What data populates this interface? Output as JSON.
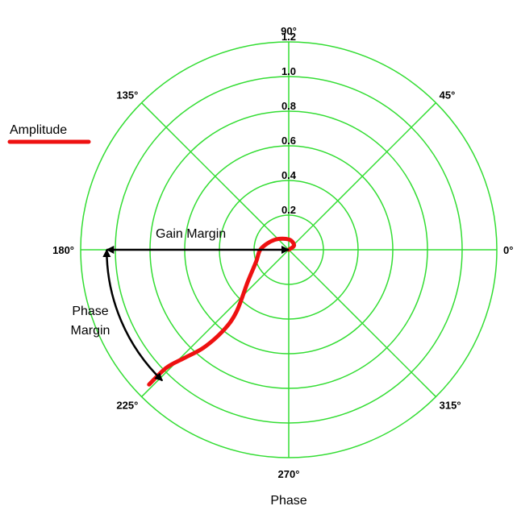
{
  "chart_data": {
    "type": "polar-line",
    "radial_ticks": [
      "0.2",
      "0.4",
      "0.6",
      "0.8",
      "1.0",
      "1.2"
    ],
    "radial_values": [
      0.2,
      0.4,
      0.6,
      0.8,
      1.0,
      1.2
    ],
    "angle_ticks": [
      "0°",
      "45°",
      "90°",
      "135°",
      "180°",
      "225°",
      "270°",
      "315°"
    ],
    "angle_values": [
      0,
      45,
      90,
      135,
      180,
      225,
      270,
      315
    ],
    "rmax": 1.2,
    "grid": true,
    "grid_color": "#33dd33",
    "axis_title": "Phase",
    "legend": {
      "label": "Amplitude",
      "color": "#ee1111",
      "position": "left"
    },
    "series": [
      {
        "name": "Amplitude",
        "color": "#ee1111",
        "points": [
          {
            "theta": 0,
            "r": 0.0
          },
          {
            "theta": 40,
            "r": 0.04
          },
          {
            "theta": 90,
            "r": 0.06
          },
          {
            "theta": 145,
            "r": 0.1
          },
          {
            "theta": 178,
            "r": 0.16
          },
          {
            "theta": 200,
            "r": 0.2
          },
          {
            "theta": 218,
            "r": 0.3
          },
          {
            "theta": 230,
            "r": 0.47
          },
          {
            "theta": 231,
            "r": 0.6
          },
          {
            "theta": 229,
            "r": 0.75
          },
          {
            "theta": 226,
            "r": 0.87
          },
          {
            "theta": 224,
            "r": 0.98
          },
          {
            "theta": 224,
            "r": 1.12
          }
        ]
      }
    ],
    "annotations": {
      "gain_margin": {
        "text": "Gain Margin",
        "from": {
          "theta": 180,
          "r": 0.0
        },
        "to": {
          "theta": 180,
          "r": 1.05
        }
      },
      "phase_margin": {
        "line1": "Phase",
        "line2": "Margin",
        "from_theta": 180,
        "to_theta": 226,
        "r": 1.05
      }
    }
  }
}
